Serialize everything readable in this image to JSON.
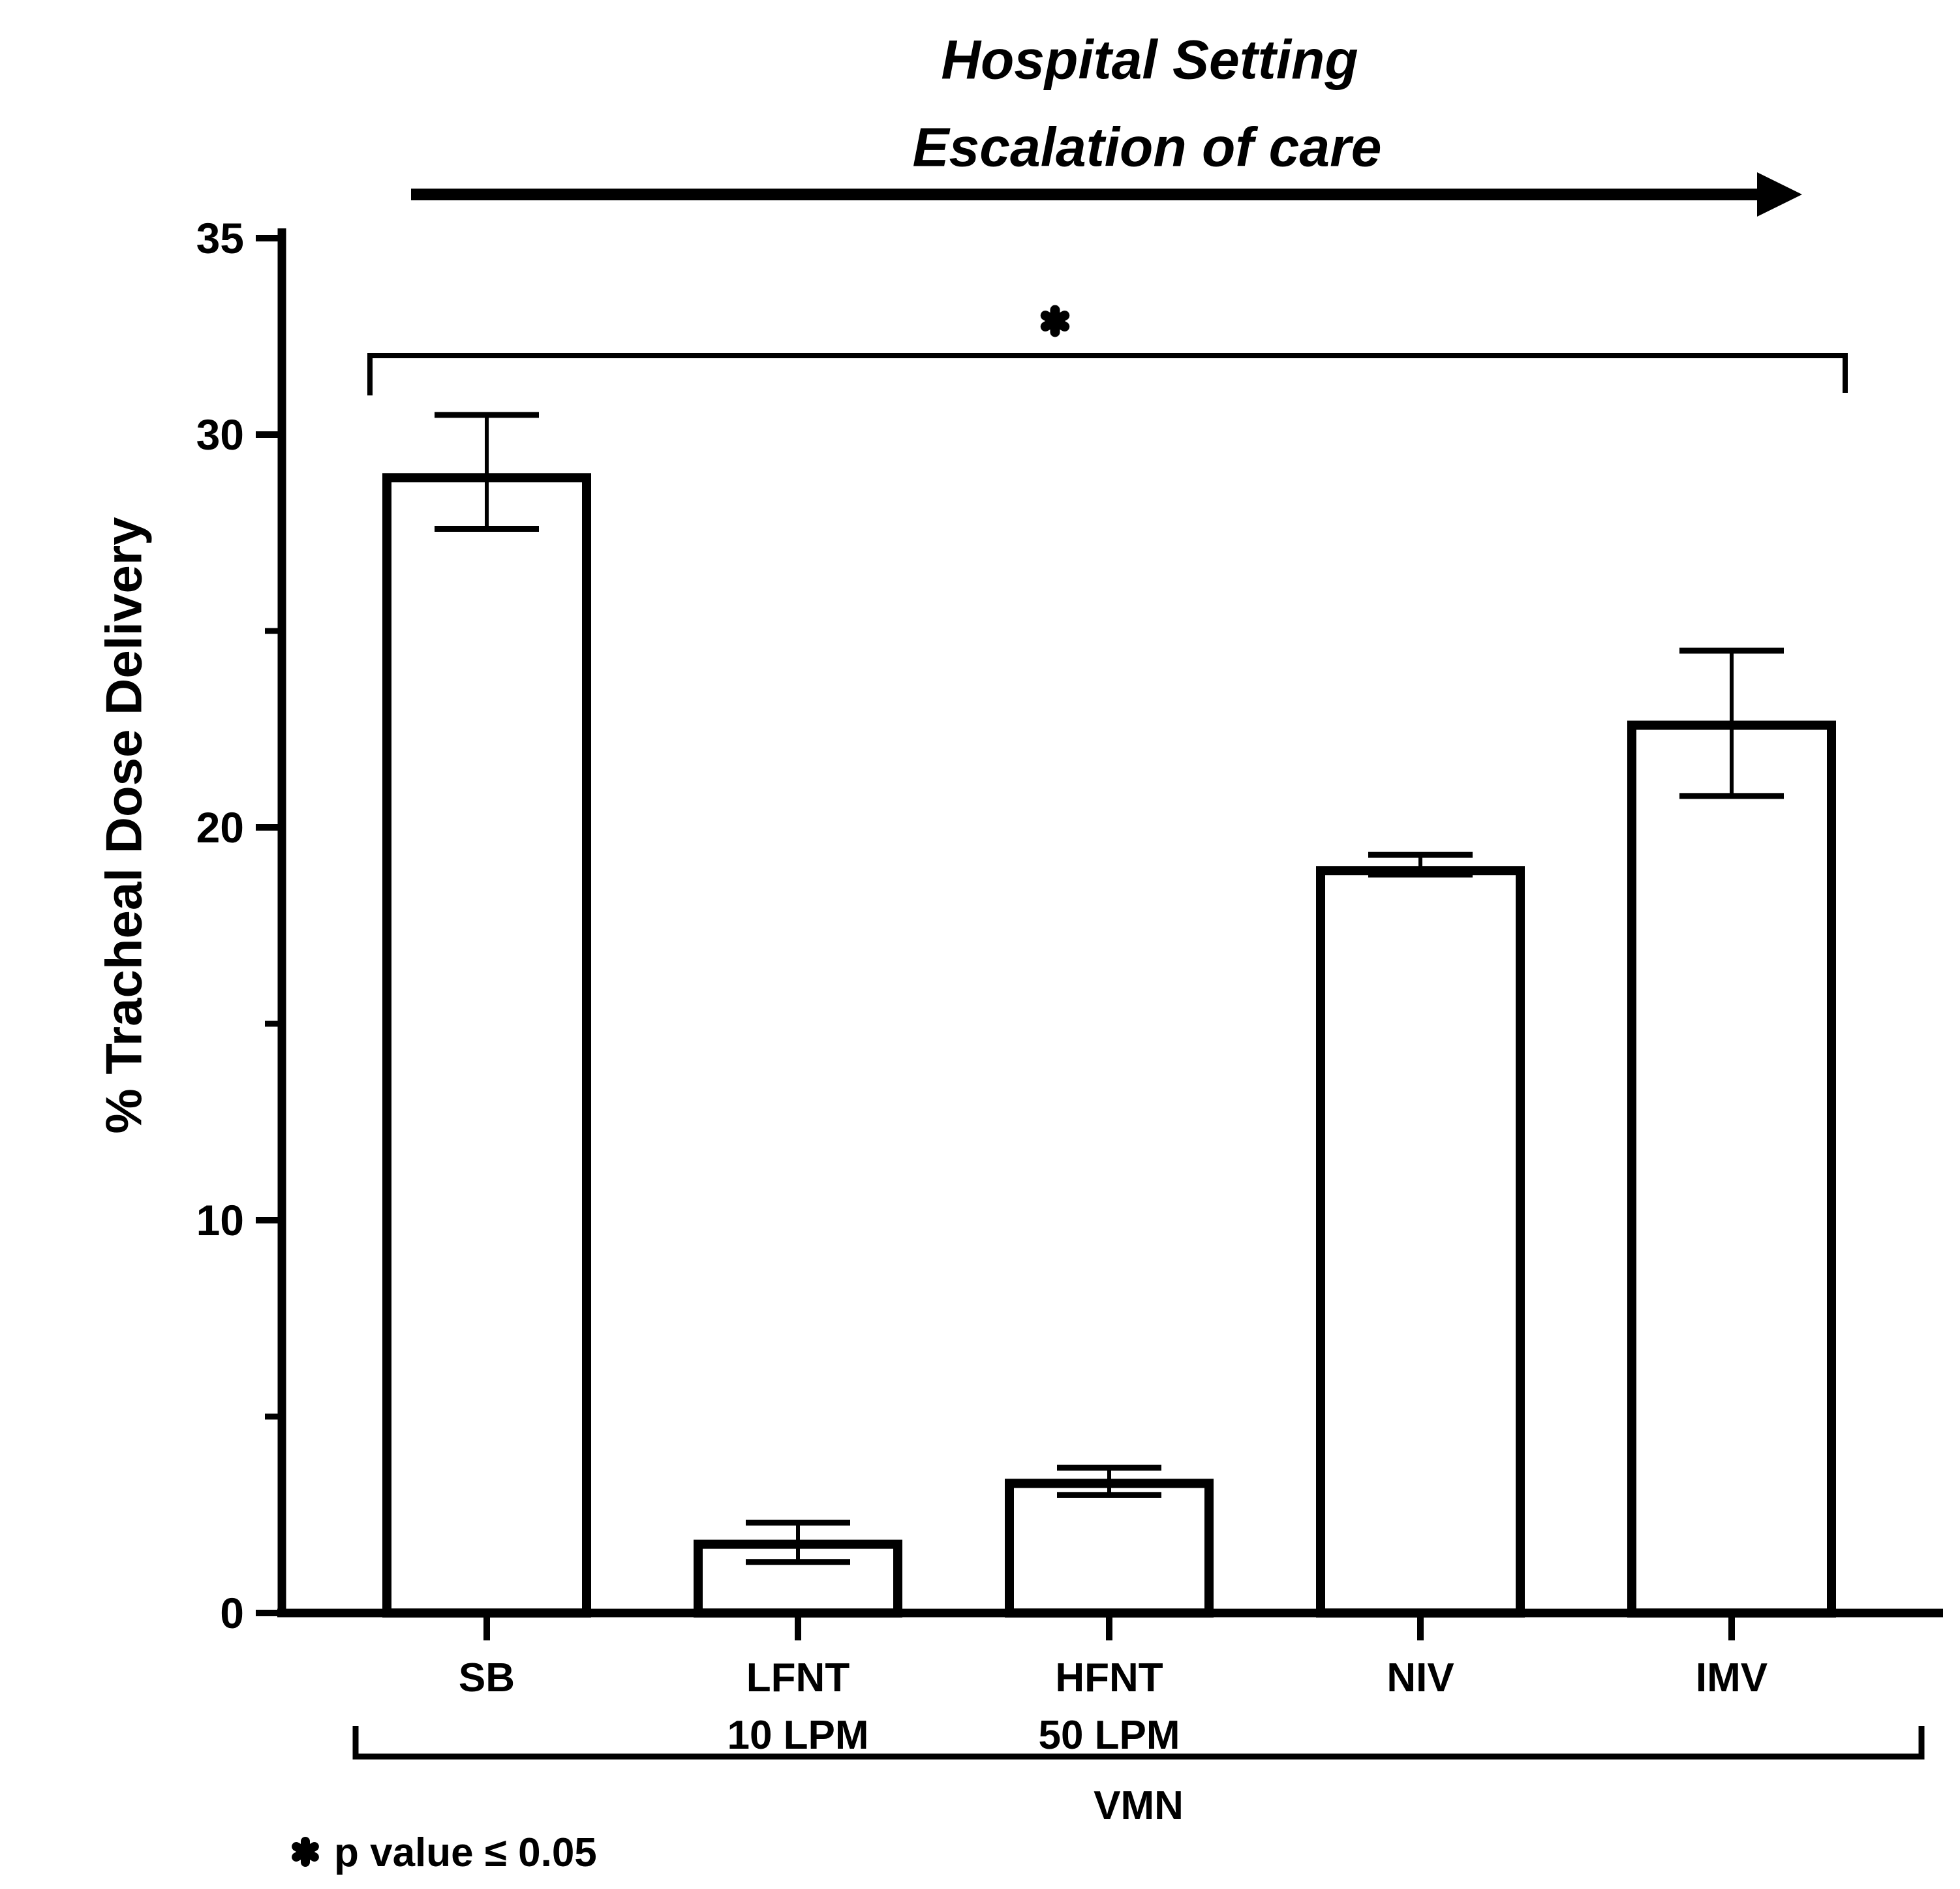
{
  "figure_title": {
    "line1": "Hospital Setting",
    "line2": "Escalation of care"
  },
  "y_axis": {
    "label": "% Tracheal Dose Delivery",
    "major_ticks": [
      0,
      10,
      20,
      30,
      35
    ],
    "minor_ticks": [
      5,
      15,
      25
    ]
  },
  "significance": {
    "marker": "heavy-asterisk",
    "footnote_text": "p value ≤ 0.05"
  },
  "group_bracket": {
    "label": "VMN"
  },
  "colors": {
    "ink": "#000000",
    "background": "#ffffff"
  },
  "chart_data": {
    "type": "bar",
    "title": "Hospital Setting – Escalation of care",
    "categories": [
      "SB",
      "LFNT",
      "HFNT",
      "NIV",
      "IMV"
    ],
    "category_sublabels": [
      "",
      "10 LPM",
      "50 LPM",
      "",
      ""
    ],
    "values": [
      28.9,
      1.75,
      3.3,
      18.9,
      22.6
    ],
    "error_low": [
      27.6,
      1.3,
      3.0,
      18.8,
      20.8
    ],
    "error_high": [
      30.5,
      2.3,
      3.7,
      19.3,
      24.5
    ],
    "xlabel": "VMN",
    "ylabel": "% Tracheal Dose Delivery",
    "ylim": [
      0,
      35
    ],
    "grid": false,
    "bar_fill": "#ffffff",
    "line_color": "#000000",
    "significance_bracket": {
      "from": "SB",
      "to": "IMV",
      "marker": "✱",
      "note": "p value ≤ 0.05"
    },
    "annotations": [
      "Hospital Setting",
      "Escalation of care",
      "VMN"
    ]
  }
}
